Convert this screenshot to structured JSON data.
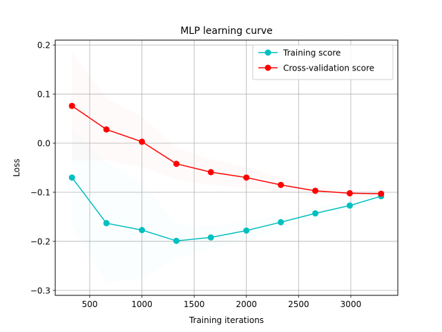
{
  "chart_data": {
    "type": "line",
    "title": "MLP learning curve",
    "xlabel": "Training iterations",
    "ylabel": "Loss",
    "xlim": [
      170,
      3450
    ],
    "ylim": [
      -0.31,
      0.21
    ],
    "xticks": [
      500,
      1000,
      1500,
      2000,
      2500,
      3000
    ],
    "xtick_labels": [
      "500",
      "1000",
      "1500",
      "2000",
      "2500",
      "3000"
    ],
    "yticks": [
      -0.3,
      -0.2,
      -0.1,
      0.0,
      0.1,
      0.2
    ],
    "ytick_labels": [
      "−0.3",
      "−0.2",
      "−0.1",
      "0.0",
      "0.1",
      "0.2"
    ],
    "grid": true,
    "legend_location": "upper right",
    "x": [
      330,
      660,
      1000,
      1330,
      1660,
      2000,
      2330,
      2660,
      2990,
      3290
    ],
    "series": [
      {
        "name": "Training score",
        "color": "#00bfbf",
        "values": [
          -0.07,
          -0.163,
          -0.177,
          -0.199,
          -0.192,
          -0.178,
          -0.161,
          -0.143,
          -0.127,
          -0.108
        ],
        "band_lower": [
          -0.17,
          -0.285,
          -0.275,
          -0.235,
          -0.215,
          -0.195,
          -0.175,
          -0.155,
          -0.137,
          -0.115
        ],
        "band_upper": [
          0.03,
          -0.04,
          -0.08,
          -0.165,
          -0.17,
          -0.16,
          -0.147,
          -0.131,
          -0.117,
          -0.101
        ]
      },
      {
        "name": "Cross-validation score",
        "color": "#ff0000",
        "values": [
          0.076,
          0.028,
          0.003,
          -0.042,
          -0.059,
          -0.07,
          -0.085,
          -0.097,
          -0.102,
          -0.103
        ],
        "band_lower": [
          -0.035,
          -0.035,
          -0.048,
          -0.075,
          -0.085,
          -0.092,
          -0.1,
          -0.107,
          -0.109,
          -0.108
        ],
        "band_upper": [
          0.187,
          0.091,
          0.055,
          -0.009,
          -0.033,
          -0.048,
          -0.07,
          -0.087,
          -0.095,
          -0.098
        ]
      }
    ]
  }
}
